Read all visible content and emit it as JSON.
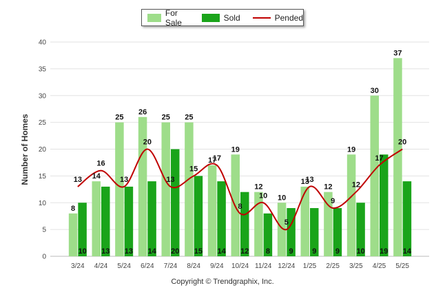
{
  "chart_data": {
    "type": "bar",
    "categories": [
      "3/24",
      "4/24",
      "5/24",
      "6/24",
      "7/24",
      "8/24",
      "9/24",
      "10/24",
      "11/24",
      "12/24",
      "1/25",
      "2/25",
      "3/25",
      "4/25",
      "5/25"
    ],
    "series": [
      {
        "name": "For Sale",
        "type": "bar",
        "color": "#9edd8a",
        "values": [
          8,
          14,
          25,
          26,
          25,
          25,
          17,
          19,
          12,
          10,
          13,
          12,
          19,
          30,
          37
        ]
      },
      {
        "name": "Sold",
        "type": "bar",
        "color": "#1aa41a",
        "values": [
          10,
          13,
          13,
          14,
          20,
          15,
          14,
          12,
          8,
          9,
          9,
          9,
          10,
          19,
          14
        ]
      },
      {
        "name": "Pended",
        "type": "line",
        "color": "#c00000",
        "values": [
          13,
          16,
          13,
          20,
          13,
          15,
          17,
          8,
          10,
          5,
          13,
          9,
          12,
          17,
          20
        ]
      }
    ],
    "xlabel": "",
    "ylabel": "Number of Homes",
    "ylim": [
      0,
      40
    ],
    "yticks": [
      0,
      5,
      10,
      15,
      20,
      25,
      30,
      35,
      40
    ],
    "grid": true,
    "legend_position": "top-center"
  },
  "legend": {
    "for_sale": "For Sale",
    "sold": "Sold",
    "pended": "Pended"
  },
  "ylabel": "Number of Homes",
  "copyright": "Copyright © Trendgraphix, Inc."
}
